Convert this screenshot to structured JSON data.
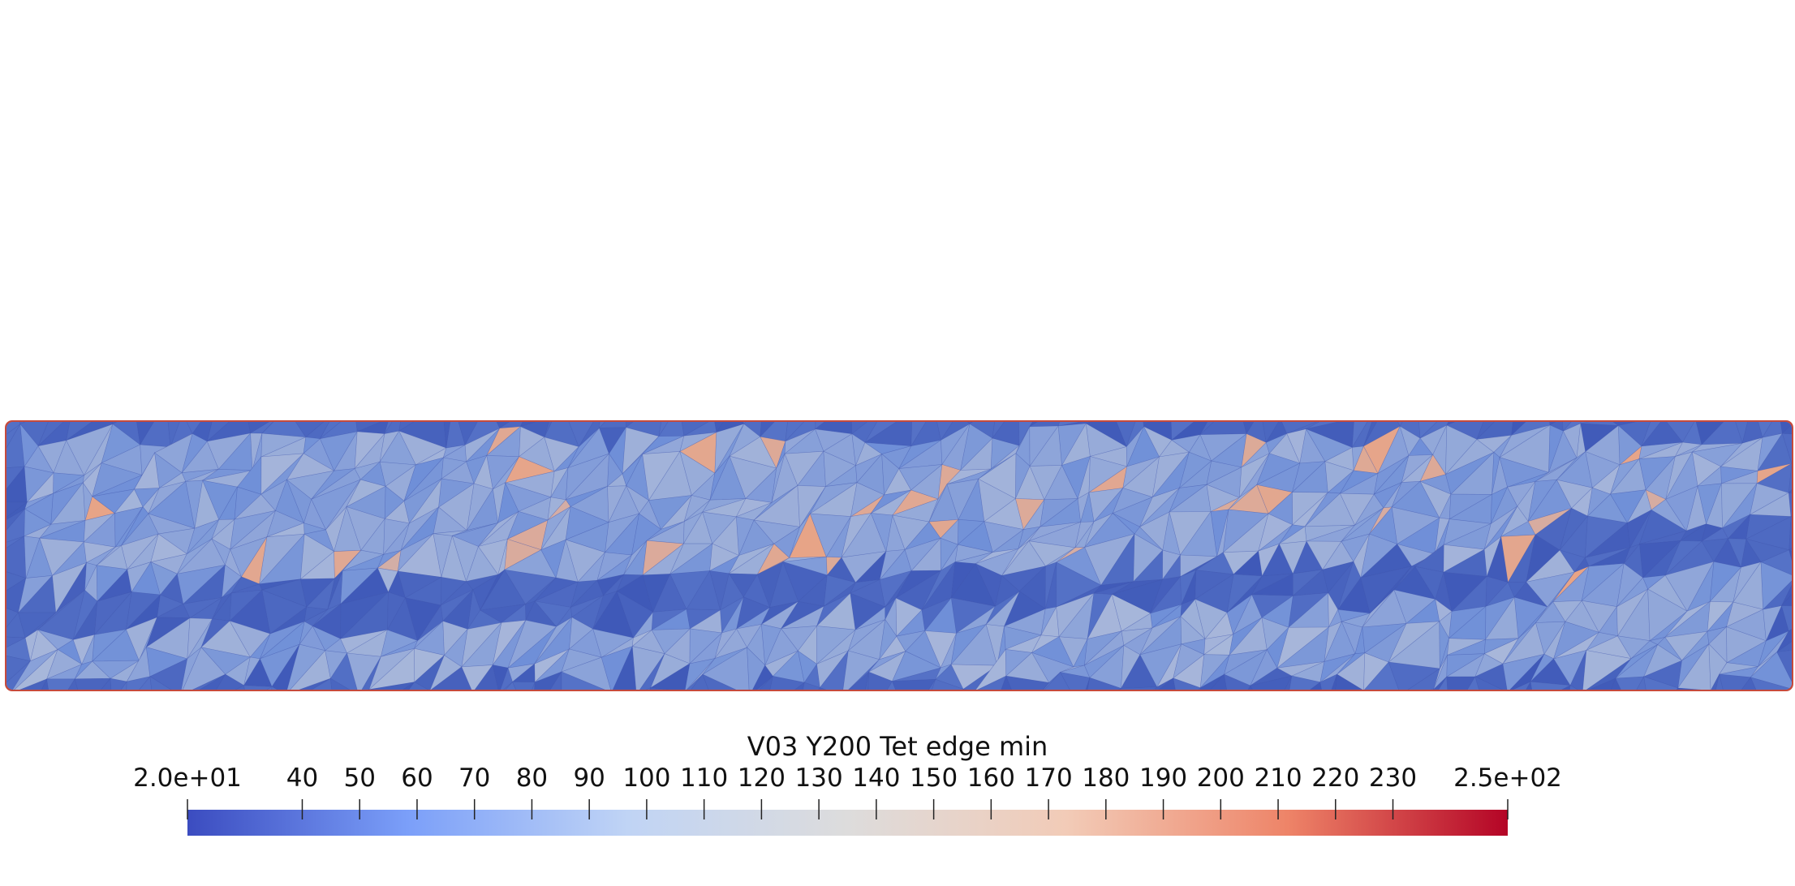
{
  "colorbar": {
    "title": "V03 Y200 Tet edge min",
    "min_label": "2.0e+01",
    "max_label": "2.5e+02",
    "range": [
      20,
      250
    ],
    "ticks": [
      "40",
      "50",
      "60",
      "70",
      "80",
      "90",
      "100",
      "110",
      "120",
      "130",
      "140",
      "150",
      "160",
      "170",
      "180",
      "190",
      "200",
      "210",
      "220",
      "230"
    ],
    "colormap": [
      "#3b4cc0",
      "#7b9ff9",
      "#c0d4f5",
      "#dddcdc",
      "#f2cbb7",
      "#ee8468",
      "#b40426"
    ]
  },
  "mesh": {
    "base_color": "#6f8fd8",
    "band_color": "#3f59b8",
    "warm_color": "#e8a486"
  }
}
